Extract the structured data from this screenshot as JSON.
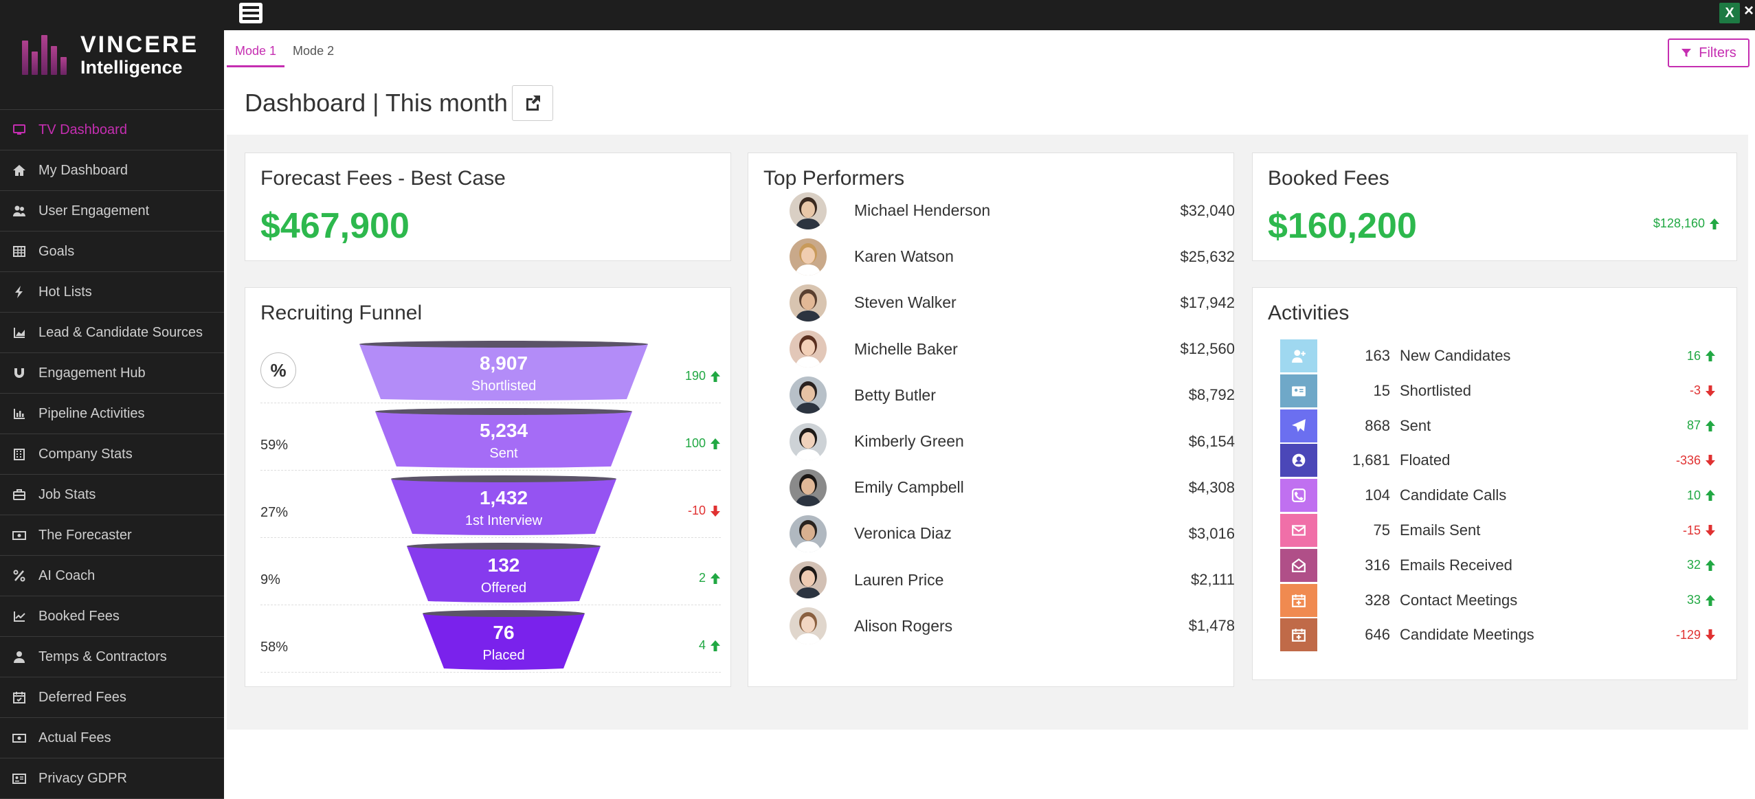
{
  "app": {
    "logo_line1": "VINCERE",
    "logo_line2": "Intelligence",
    "accent": "#c52eb1"
  },
  "sidebar": {
    "items": [
      {
        "label": "TV Dashboard",
        "icon": "monitor-icon",
        "active": true
      },
      {
        "label": "My Dashboard",
        "icon": "home-icon"
      },
      {
        "label": "User Engagement",
        "icon": "users-icon"
      },
      {
        "label": "Goals",
        "icon": "table-icon"
      },
      {
        "label": "Hot Lists",
        "icon": "bolt-icon"
      },
      {
        "label": "Lead & Candidate Sources",
        "icon": "area-chart-icon"
      },
      {
        "label": "Engagement Hub",
        "icon": "magnet-icon"
      },
      {
        "label": "Pipeline Activities",
        "icon": "bar-chart-icon"
      },
      {
        "label": "Company Stats",
        "icon": "building-icon"
      },
      {
        "label": "Job Stats",
        "icon": "briefcase-icon"
      },
      {
        "label": "The Forecaster",
        "icon": "money-icon"
      },
      {
        "label": "AI Coach",
        "icon": "percent-icon"
      },
      {
        "label": "Booked Fees",
        "icon": "line-chart-icon"
      },
      {
        "label": "Temps & Contractors",
        "icon": "user-icon"
      },
      {
        "label": "Deferred Fees",
        "icon": "calendar-check-icon"
      },
      {
        "label": "Actual Fees",
        "icon": "money-icon"
      },
      {
        "label": "Privacy GDPR",
        "icon": "id-card-icon"
      }
    ]
  },
  "tabs": [
    {
      "label": "Mode 1",
      "active": true
    },
    {
      "label": "Mode 2",
      "active": false
    }
  ],
  "filters_label": "Filters",
  "header": {
    "title": "Dashboard | This month"
  },
  "forecast": {
    "title": "Forecast Fees - Best Case",
    "value": "$467,900"
  },
  "booked": {
    "title": "Booked Fees",
    "value": "$160,200",
    "change": "$128,160",
    "direction": "up"
  },
  "funnel": {
    "title": "Recruiting Funnel",
    "toggle_symbol": "%",
    "stages": [
      {
        "value": "8,907",
        "label": "Shortlisted",
        "pct": "",
        "change": "190",
        "direction": "up",
        "color": "#b38cf8"
      },
      {
        "value": "5,234",
        "label": "Sent",
        "pct": "59%",
        "change": "100",
        "direction": "up",
        "color": "#a56cf6"
      },
      {
        "value": "1,432",
        "label": "1st Interview",
        "pct": "27%",
        "change": "-10",
        "direction": "down",
        "color": "#9553f2"
      },
      {
        "value": "132",
        "label": "Offered",
        "pct": "9%",
        "change": "2",
        "direction": "up",
        "color": "#863bee"
      },
      {
        "value": "76",
        "label": "Placed",
        "pct": "58%",
        "change": "4",
        "direction": "up",
        "color": "#7a22ec"
      }
    ]
  },
  "performers": {
    "title": "Top Performers",
    "rows": [
      {
        "name": "Michael Henderson",
        "value": "$32,040"
      },
      {
        "name": "Karen Watson",
        "value": "$25,632"
      },
      {
        "name": "Steven Walker",
        "value": "$17,942"
      },
      {
        "name": "Michelle Baker",
        "value": "$12,560"
      },
      {
        "name": "Betty Butler",
        "value": "$8,792"
      },
      {
        "name": "Kimberly Green",
        "value": "$6,154"
      },
      {
        "name": "Emily Campbell",
        "value": "$4,308"
      },
      {
        "name": "Veronica Diaz",
        "value": "$3,016"
      },
      {
        "name": "Lauren Price",
        "value": "$2,111"
      },
      {
        "name": "Alison Rogers",
        "value": "$1,478"
      }
    ]
  },
  "activities": {
    "title": "Activities",
    "rows": [
      {
        "count": "163",
        "label": "New Candidates",
        "change": "16",
        "direction": "up",
        "color": "#9fd8f0",
        "icon": "user-plus-icon"
      },
      {
        "count": "15",
        "label": "Shortlisted",
        "change": "-3",
        "direction": "down",
        "color": "#6fa8c8",
        "icon": "address-card-icon"
      },
      {
        "count": "868",
        "label": "Sent",
        "change": "87",
        "direction": "up",
        "color": "#6b6ff0",
        "icon": "paper-plane-icon"
      },
      {
        "count": "1,681",
        "label": "Floated",
        "change": "-336",
        "direction": "down",
        "color": "#4b47b8",
        "icon": "user-circle-icon"
      },
      {
        "count": "104",
        "label": "Candidate Calls",
        "change": "10",
        "direction": "up",
        "color": "#c070f0",
        "icon": "phone-icon"
      },
      {
        "count": "75",
        "label": "Emails Sent",
        "change": "-15",
        "direction": "down",
        "color": "#f06fa8",
        "icon": "envelope-icon"
      },
      {
        "count": "316",
        "label": "Emails Received",
        "change": "32",
        "direction": "up",
        "color": "#b04f88",
        "icon": "envelope-open-icon"
      },
      {
        "count": "328",
        "label": "Contact Meetings",
        "change": "33",
        "direction": "up",
        "color": "#f08a50",
        "icon": "calendar-plus-icon"
      },
      {
        "count": "646",
        "label": "Candidate Meetings",
        "change": "-129",
        "direction": "down",
        "color": "#c06a48",
        "icon": "calendar-plus-icon"
      }
    ]
  }
}
